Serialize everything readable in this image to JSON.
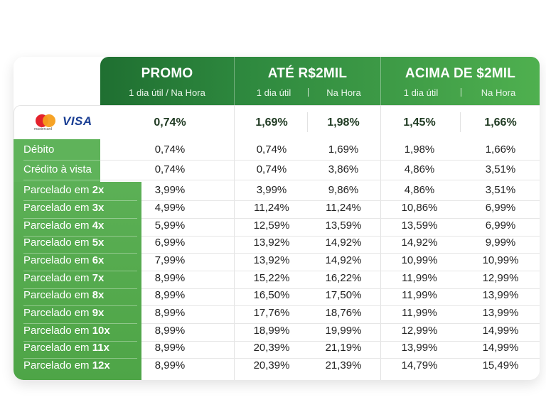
{
  "header": {
    "columns": [
      {
        "title": "PROMO",
        "subs": [
          "1 dia útil / Na Hora"
        ]
      },
      {
        "title": "ATÉ R$2MIL",
        "subs": [
          "1 dia útil",
          "Na Hora"
        ]
      },
      {
        "title": "ACIMA DE $2MIL",
        "subs": [
          "1 dia útil",
          "Na Hora"
        ]
      }
    ]
  },
  "brands": {
    "mastercard": "mastercard",
    "visa": "VISA"
  },
  "top_rates": [
    "0,74%",
    "1,69%",
    "1,98%",
    "1,45%",
    "1,66%"
  ],
  "rows": [
    {
      "label": "Débito",
      "suffix": "",
      "values": [
        "0,74%",
        "0,74%",
        "1,69%",
        "1,98%",
        "1,66%"
      ]
    },
    {
      "label": "Crédito à vista",
      "suffix": "",
      "values": [
        "0,74%",
        "0,74%",
        "3,86%",
        "4,86%",
        "3,51%"
      ]
    },
    {
      "label": "Parcelado em ",
      "suffix": "2x",
      "values": [
        "3,99%",
        "3,99%",
        "9,86%",
        "4,86%",
        "3,51%"
      ]
    },
    {
      "label": "Parcelado em ",
      "suffix": "3x",
      "values": [
        "4,99%",
        "11,24%",
        "11,24%",
        "10,86%",
        "6,99%"
      ]
    },
    {
      "label": "Parcelado em ",
      "suffix": "4x",
      "values": [
        "5,99%",
        "12,59%",
        "13,59%",
        "13,59%",
        "6,99%"
      ]
    },
    {
      "label": "Parcelado em ",
      "suffix": "5x",
      "values": [
        "6,99%",
        "13,92%",
        "14,92%",
        "14,92%",
        "9,99%"
      ]
    },
    {
      "label": "Parcelado em ",
      "suffix": "6x",
      "values": [
        "7,99%",
        "13,92%",
        "14,92%",
        "10,99%",
        "10,99%"
      ]
    },
    {
      "label": "Parcelado em ",
      "suffix": "7x",
      "values": [
        "8,99%",
        "15,22%",
        "16,22%",
        "11,99%",
        "12,99%"
      ]
    },
    {
      "label": "Parcelado em ",
      "suffix": "8x",
      "values": [
        "8,99%",
        "16,50%",
        "17,50%",
        "11,99%",
        "13,99%"
      ]
    },
    {
      "label": "Parcelado em ",
      "suffix": "9x",
      "values": [
        "8,99%",
        "17,76%",
        "18,76%",
        "11,99%",
        "13,99%"
      ]
    },
    {
      "label": "Parcelado em ",
      "suffix": "10x",
      "values": [
        "8,99%",
        "18,99%",
        "19,99%",
        "12,99%",
        "14,99%"
      ]
    },
    {
      "label": "Parcelado em ",
      "suffix": "11x",
      "values": [
        "8,99%",
        "20,39%",
        "21,19%",
        "13,99%",
        "14,99%"
      ]
    },
    {
      "label": "Parcelado em ",
      "suffix": "12x",
      "values": [
        "8,99%",
        "20,39%",
        "21,39%",
        "14,79%",
        "15,49%"
      ]
    }
  ],
  "colors": {
    "header_dark": "#1f6f31",
    "header_light": "#4fb04f",
    "label_green": "#56ab4f"
  }
}
